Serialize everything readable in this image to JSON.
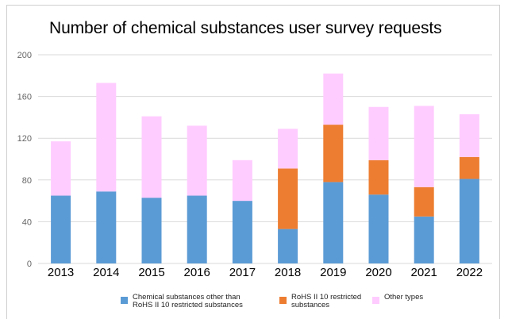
{
  "chart_data": {
    "type": "bar",
    "stacked": true,
    "title": "Number of chemical substances user survey requests",
    "xlabel": "",
    "ylabel": "",
    "ylim": [
      0,
      200
    ],
    "yticks": [
      "0",
      "40",
      "80",
      "120",
      "160",
      "200"
    ],
    "grid": true,
    "legend_position": "bottom",
    "categories": [
      "2013",
      "2014",
      "2015",
      "2016",
      "2017",
      "2018",
      "2019",
      "2020",
      "2021",
      "2022"
    ],
    "series": [
      {
        "name": "Chemical substances other than RoHS II 10 restricted substances",
        "color": "#5b9bd5",
        "values": [
          65,
          69,
          63,
          65,
          60,
          33,
          78,
          66,
          45,
          81
        ]
      },
      {
        "name": "RoHS II 10 restricted substances",
        "color": "#ed7d31",
        "values": [
          0,
          0,
          0,
          0,
          0,
          58,
          55,
          33,
          28,
          21
        ]
      },
      {
        "name": "Other types",
        "color": "#ffccff",
        "values": [
          52,
          104,
          78,
          67,
          39,
          38,
          49,
          51,
          78,
          41
        ]
      }
    ]
  },
  "legend": {
    "item1_line1": "Chemical substances other than",
    "item1_line2": "RoHS II 10 restricted substances",
    "item2_line1": "RoHS II 10 restricted",
    "item2_line2": "substances",
    "item3_line1": "Other types"
  }
}
